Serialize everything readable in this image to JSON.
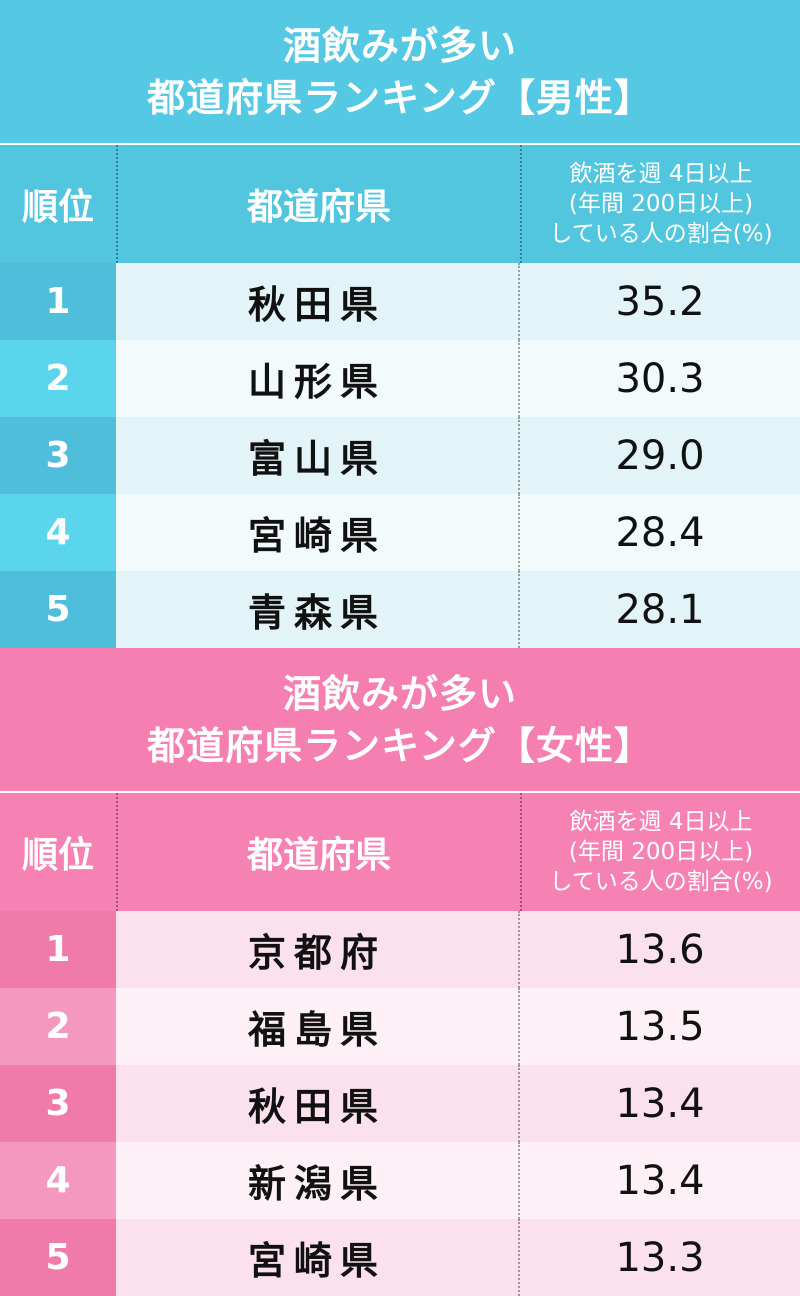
{
  "colors": {
    "male_accent": "#55c9e3",
    "female_accent": "#f57fb0"
  },
  "male": {
    "title_line1": "酒飲みが多い",
    "title_line2": "都道府県ランキング【男性】",
    "header": {
      "rank": "順位",
      "prefecture": "都道府県",
      "value_line1": "飲酒を週 4日以上",
      "value_line2": "(年間 200日以上)",
      "value_line3": "している人の割合(%)"
    },
    "rows": [
      {
        "rank": "1",
        "prefecture": "秋田県",
        "value": "35.2"
      },
      {
        "rank": "2",
        "prefecture": "山形県",
        "value": "30.3"
      },
      {
        "rank": "3",
        "prefecture": "富山県",
        "value": "29.0"
      },
      {
        "rank": "4",
        "prefecture": "宮崎県",
        "value": "28.4"
      },
      {
        "rank": "5",
        "prefecture": "青森県",
        "value": "28.1"
      }
    ]
  },
  "female": {
    "title_line1": "酒飲みが多い",
    "title_line2": "都道府県ランキング【女性】",
    "header": {
      "rank": "順位",
      "prefecture": "都道府県",
      "value_line1": "飲酒を週 4日以上",
      "value_line2": "(年間 200日以上)",
      "value_line3": "している人の割合(%)"
    },
    "rows": [
      {
        "rank": "1",
        "prefecture": "京都府",
        "value": "13.6"
      },
      {
        "rank": "2",
        "prefecture": "福島県",
        "value": "13.5"
      },
      {
        "rank": "3",
        "prefecture": "秋田県",
        "value": "13.4"
      },
      {
        "rank": "4",
        "prefecture": "新潟県",
        "value": "13.4"
      },
      {
        "rank": "5",
        "prefecture": "宮崎県",
        "value": "13.3"
      }
    ]
  }
}
